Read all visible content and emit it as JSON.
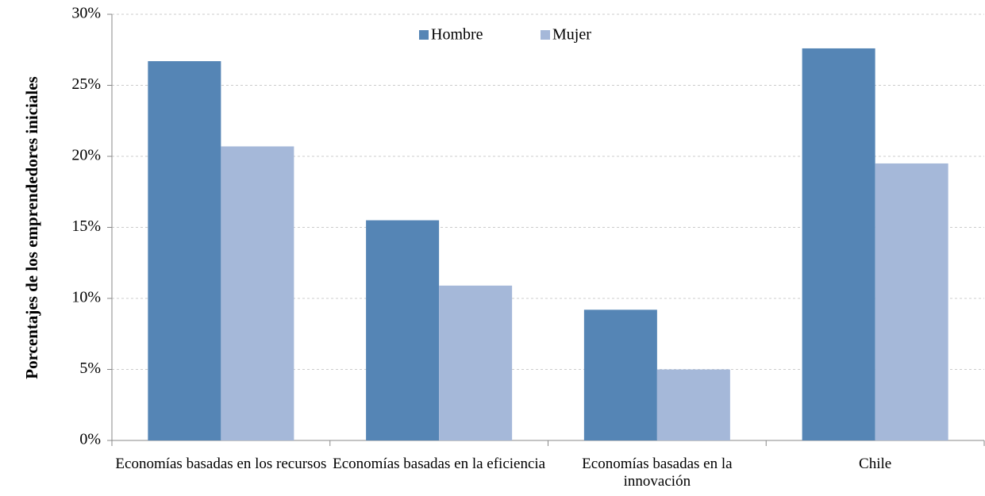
{
  "chart_data": {
    "type": "bar",
    "y_label": "Porcentajes de los emprendedores iniciales",
    "categories": [
      "Economías basadas en los recursos",
      "Economías basadas en la eficiencia",
      "Economías basadas en la innovación",
      "Chile"
    ],
    "series": [
      {
        "name": "Hombre",
        "color": "#5585b5",
        "values": [
          26.7,
          15.5,
          9.2,
          27.6
        ]
      },
      {
        "name": "Mujer",
        "color": "#a5b8d9",
        "values": [
          20.7,
          10.9,
          5.0,
          19.5
        ]
      }
    ],
    "ylim": [
      0,
      30
    ],
    "yticks": [
      {
        "value": 0,
        "label": "0%"
      },
      {
        "value": 5,
        "label": "5%"
      },
      {
        "value": 10,
        "label": "10%"
      },
      {
        "value": 15,
        "label": "15%"
      },
      {
        "value": 20,
        "label": "20%"
      },
      {
        "value": 25,
        "label": "25%"
      },
      {
        "value": 30,
        "label": "30%"
      }
    ],
    "grid": true,
    "legend": "top"
  }
}
